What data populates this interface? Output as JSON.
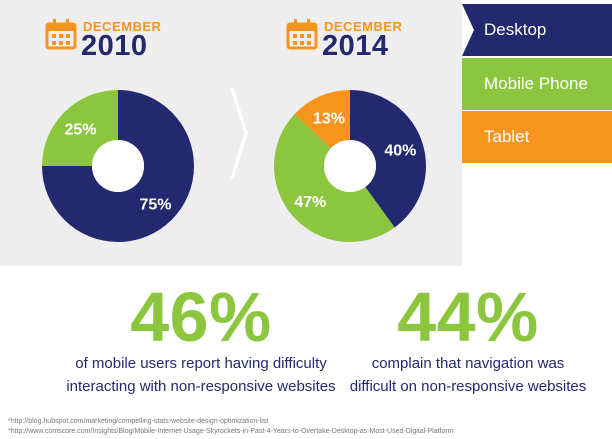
{
  "colors": {
    "desktop": "#23296e",
    "mobile": "#8cc63f",
    "tablet": "#f7941d",
    "panel": "#eeeeee"
  },
  "periods": [
    {
      "month": "DECEMBER",
      "year": "2010"
    },
    {
      "month": "DECEMBER",
      "year": "2014"
    }
  ],
  "legend": [
    {
      "label": "Desktop",
      "color": "#23296e"
    },
    {
      "label": "Mobile Phone",
      "color": "#8cc63f"
    },
    {
      "label": "Tablet",
      "color": "#f7941d"
    }
  ],
  "chart_data": [
    {
      "type": "pie",
      "variant": "donut",
      "title": "DECEMBER 2010",
      "categories": [
        "Desktop",
        "Mobile Phone"
      ],
      "values": [
        75,
        25
      ],
      "labels": [
        "75%",
        "25%"
      ]
    },
    {
      "type": "pie",
      "variant": "donut",
      "title": "DECEMBER 2014",
      "categories": [
        "Desktop",
        "Mobile Phone",
        "Tablet"
      ],
      "values": [
        40,
        47,
        13
      ],
      "labels": [
        "40%",
        "47%",
        "13%"
      ]
    }
  ],
  "stats": [
    {
      "value": "46%",
      "text_line1": "of mobile users report having difficulty",
      "text_line2": "interacting with non-responsive websites"
    },
    {
      "value": "44%",
      "text_line1": "complain that navigation was",
      "text_line2": "difficult on non-responsive websites"
    }
  ],
  "sources": [
    "*http://blog.hubspot.com/marketing/compelling-stats-website-design-optimization-list",
    "*http://www.comscore.com/Insights/Blog/Mobile-Internet-Usage-Skyrockets-in-Past-4-Years-to-Overtake-Desktop-as-Most-Used-Digital-Platform"
  ]
}
